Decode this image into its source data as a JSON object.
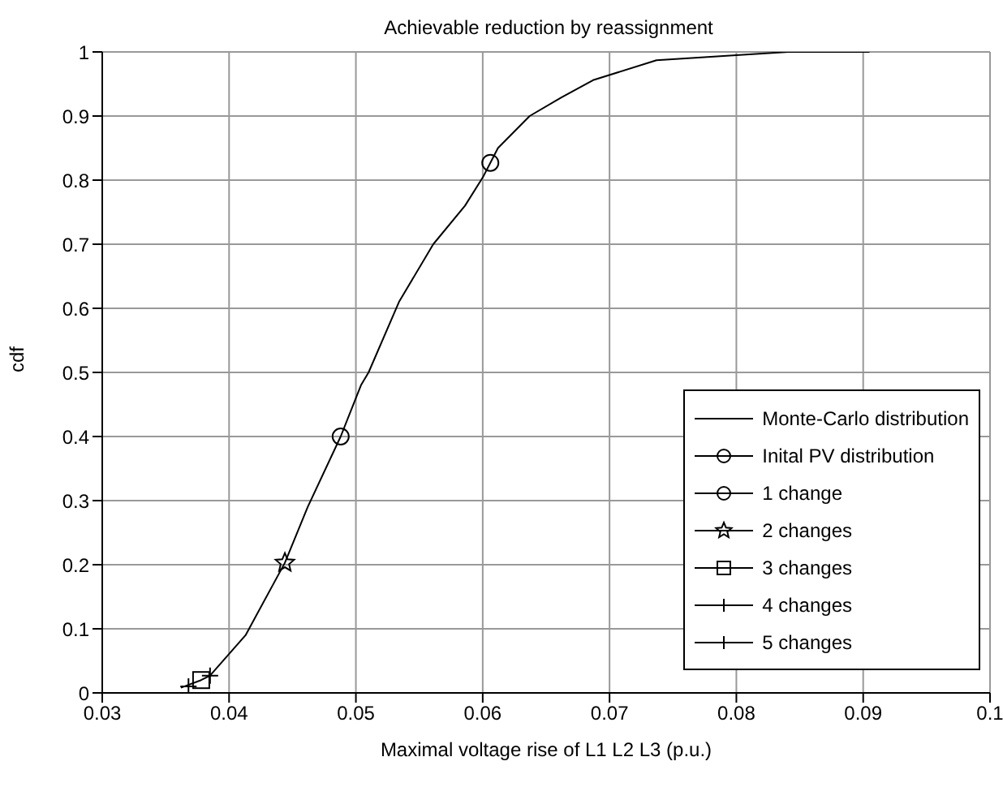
{
  "chart_data": {
    "type": "line",
    "title": "Achievable reduction by reassignment",
    "xlabel": "Maximal voltage rise of L1 L2 L3 (p.u.)",
    "ylabel": "cdf",
    "xlim": [
      0.03,
      0.1
    ],
    "xticks": [
      0.03,
      0.04,
      0.05,
      0.06,
      0.07,
      0.08,
      0.09,
      0.1
    ],
    "ylim": [
      0,
      1
    ],
    "yticks": [
      0,
      0.1,
      0.2,
      0.3,
      0.4,
      0.5,
      0.6,
      0.7,
      0.8,
      0.9,
      1
    ],
    "grid": true,
    "legend": "bottom right",
    "series": [
      {
        "name": "Monte-Carlo distribution",
        "marker": "none",
        "line_style": "solid",
        "color": "#000000",
        "x": [
          0.0362,
          0.0378,
          0.0385,
          0.0413,
          0.0444,
          0.0462,
          0.0488,
          0.0504,
          0.051,
          0.0534,
          0.0561,
          0.0586,
          0.06,
          0.0606,
          0.0612,
          0.0637,
          0.0662,
          0.0687,
          0.0737,
          0.08,
          0.0841,
          0.0905
        ],
        "values": [
          0.008,
          0.02,
          0.027,
          0.09,
          0.203,
          0.29,
          0.4,
          0.48,
          0.5,
          0.61,
          0.7,
          0.76,
          0.804,
          0.827,
          0.85,
          0.9,
          0.929,
          0.956,
          0.987,
          0.995,
          1,
          1
        ]
      },
      {
        "name": "Inital PV distribution",
        "type": "scatter",
        "marker": "circle",
        "color": "#000000",
        "x": [
          0.0606
        ],
        "values": [
          0.827
        ]
      },
      {
        "name": "1 change",
        "type": "scatter",
        "marker": "circle",
        "color": "#000000",
        "x": [
          0.0488
        ],
        "values": [
          0.4
        ]
      },
      {
        "name": "2 changes",
        "type": "scatter",
        "marker": "star",
        "color": "#000000",
        "x": [
          0.0444
        ],
        "values": [
          0.203
        ]
      },
      {
        "name": "3 changes",
        "type": "scatter",
        "marker": "square",
        "color": "#000000",
        "x": [
          0.0378
        ],
        "values": [
          0.02
        ]
      },
      {
        "name": "4 changes",
        "type": "scatter",
        "marker": "cross",
        "color": "#000000",
        "x": [
          0.0385
        ],
        "values": [
          0.027
        ]
      },
      {
        "name": "5 changes",
        "type": "scatter",
        "marker": "cross",
        "color": "#000000",
        "x": [
          0.0368
        ],
        "values": [
          0.01
        ]
      }
    ]
  }
}
